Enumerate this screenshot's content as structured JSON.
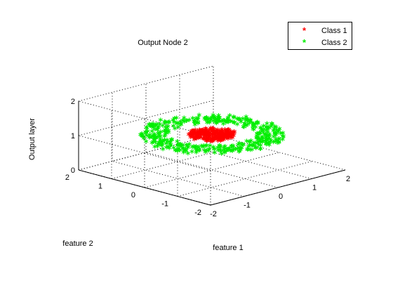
{
  "chart_data": {
    "type": "scatter3d",
    "title": "Output Node 2",
    "xlabel": "feature 1",
    "ylabel": "feature 2",
    "zlabel": "Output layer",
    "xlim": [
      -2,
      2
    ],
    "ylim": [
      -2,
      2
    ],
    "zlim": [
      0,
      2
    ],
    "xticks": [
      "-2",
      "-1",
      "0",
      "1",
      "2"
    ],
    "yticks": [
      "-2",
      "-1",
      "0",
      "1",
      "2"
    ],
    "zticks": [
      "0",
      "1",
      "2"
    ],
    "grid": true,
    "legend_position": "top-right",
    "marker": "*",
    "series": [
      {
        "name": "Class 1",
        "color": "#ff0000",
        "distribution": "disk",
        "count": 260,
        "radius_range": [
          0,
          0.5
        ],
        "z": 1
      },
      {
        "name": "Class 2",
        "color": "#00ee00",
        "distribution": "ring",
        "count": 420,
        "radius_range": [
          0.95,
          1.55
        ],
        "z": 1
      }
    ]
  }
}
